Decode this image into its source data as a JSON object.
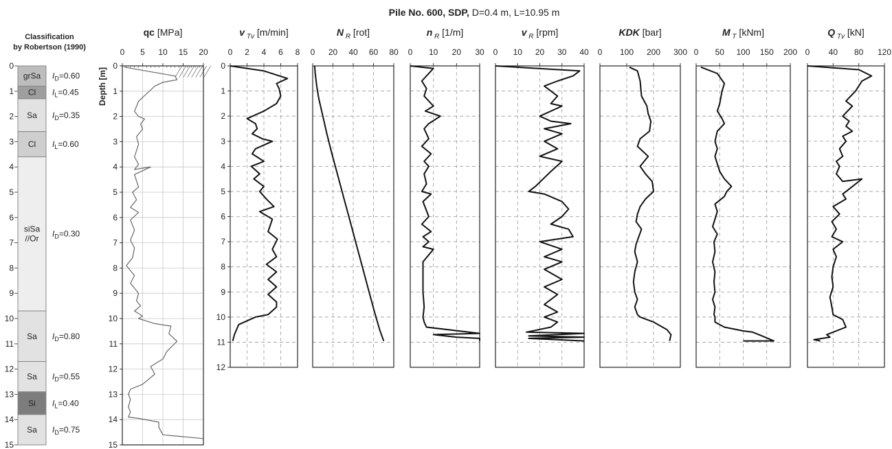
{
  "figure": {
    "title_bold": "Pile No. 600, SDP,",
    "title_rest": " D=0.4 m, L=10.95 m"
  },
  "classification": {
    "header_line1": "Classification",
    "header_line2": "by Robertson (1990)",
    "depth_ticks": [
      "0",
      "1",
      "2",
      "3",
      "4",
      "5",
      "6",
      "7",
      "8",
      "9",
      "10",
      "11",
      "12",
      "13",
      "14",
      "15"
    ],
    "layers": [
      {
        "top": 0,
        "bottom": 0.8,
        "soil": "grSa",
        "index": "I_D=0.60",
        "shade": "#bdbdbd"
      },
      {
        "top": 0.8,
        "bottom": 1.3,
        "soil": "Cl",
        "index": "I_L=0.45",
        "shade": "#9e9e9e"
      },
      {
        "top": 1.3,
        "bottom": 2.6,
        "soil": "Sa",
        "index": "I_D=0.35",
        "shade": "#e2e2e2"
      },
      {
        "top": 2.6,
        "bottom": 3.6,
        "soil": "Cl",
        "index": "I_L=0.60",
        "shade": "#cfcfcf"
      },
      {
        "top": 3.6,
        "bottom": 9.7,
        "soil": "siSa\n//Or",
        "index": "I_D=0.30",
        "shade": "#eeeeee"
      },
      {
        "top": 9.7,
        "bottom": 11.7,
        "soil": "Sa",
        "index": "I_D=0.80",
        "shade": "#e2e2e2"
      },
      {
        "top": 11.7,
        "bottom": 12.9,
        "soil": "Sa",
        "index": "I_D=0.55",
        "shade": "#e2e2e2"
      },
      {
        "top": 12.9,
        "bottom": 13.8,
        "soil": "Si",
        "index": "I_L=0.40",
        "shade": "#7d7d7d"
      },
      {
        "top": 13.8,
        "bottom": 15,
        "soil": "Sa",
        "index": "I_D=0.75",
        "shade": "#e2e2e2"
      }
    ]
  },
  "chart_data": [
    {
      "id": "qc",
      "type": "line",
      "title_main": "qc",
      "title_unit": " [MPa]",
      "ylabel": "Depth [m]",
      "xlim": [
        0,
        20
      ],
      "ylim": [
        0,
        15
      ],
      "xticks": [
        "0",
        "5",
        "10",
        "15",
        "20"
      ],
      "yticks": [
        "0",
        "1",
        "2",
        "3",
        "4",
        "5",
        "6",
        "7",
        "8",
        "9",
        "10",
        "11",
        "12",
        "13",
        "14",
        "15"
      ],
      "series": [
        {
          "x": [
            0.5,
            13,
            13.5,
            10,
            8,
            6,
            4,
            3,
            4,
            5.5,
            4.5,
            5,
            3.5,
            4,
            3,
            4,
            3,
            7,
            3,
            4,
            2.5,
            3.5,
            2,
            4,
            2,
            3,
            2,
            3,
            2.5,
            1,
            3,
            2,
            3,
            4,
            3.5,
            4.5,
            3,
            5,
            4,
            6,
            8,
            12,
            11.5,
            13.5,
            11,
            10,
            7,
            8,
            5,
            2,
            1.5,
            2,
            1.5,
            2,
            1.5,
            4,
            9,
            9,
            10,
            20
          ],
          "y": [
            0.05,
            0.4,
            0.55,
            0.65,
            0.8,
            1.1,
            1.4,
            1.8,
            2.0,
            2.1,
            2.3,
            2.5,
            2.8,
            3.1,
            3.6,
            3.9,
            4.1,
            4.0,
            4.3,
            4.8,
            5.0,
            5.3,
            5.6,
            5.8,
            6.1,
            6.5,
            6.9,
            7.2,
            7.6,
            7.9,
            8.3,
            8.6,
            8.8,
            9.0,
            9.3,
            9.5,
            9.7,
            9.9,
            10.0,
            10.1,
            10.2,
            10.3,
            10.6,
            10.9,
            11.3,
            11.6,
            11.9,
            12.2,
            12.6,
            12.8,
            13.0,
            13.2,
            13.5,
            13.7,
            13.9,
            13.95,
            14.1,
            14.3,
            14.6,
            14.75
          ]
        }
      ]
    },
    {
      "id": "vTv",
      "type": "line",
      "title_main": "v",
      "title_sub": "Tv",
      "title_unit": " [m/min]",
      "xlim": [
        0,
        8
      ],
      "ylim": [
        0,
        12
      ],
      "xticks": [
        "0",
        "2",
        "4",
        "6",
        "8"
      ],
      "yticks": [
        "0",
        "1",
        "2",
        "3",
        "4",
        "5",
        "6",
        "7",
        "8",
        "9",
        "10",
        "11",
        "12"
      ],
      "series": [
        {
          "x": [
            0,
            4,
            6.8,
            5.5,
            5.8,
            6,
            5.5,
            4,
            2,
            3,
            3.2,
            2.6,
            3.8,
            5,
            3,
            2.6,
            4,
            2.5,
            3.5,
            2.8,
            4,
            3.5,
            4.3,
            5.2,
            3.5,
            5,
            4.5,
            5.6,
            5,
            5.5,
            4.3,
            5.5,
            4.5,
            5.5,
            4.5,
            5.5,
            5.5,
            4.5,
            3,
            1,
            0.5,
            0.3
          ],
          "y": [
            0,
            0.2,
            0.5,
            0.7,
            0.9,
            1.2,
            1.5,
            1.8,
            2.1,
            2.3,
            2.5,
            2.7,
            2.9,
            3.0,
            3.3,
            3.5,
            3.8,
            4.0,
            4.3,
            4.5,
            4.8,
            5.0,
            5.3,
            5.6,
            5.8,
            6.1,
            6.6,
            6.9,
            7.3,
            7.6,
            7.9,
            8.2,
            8.5,
            8.8,
            9.1,
            9.4,
            9.6,
            9.9,
            10.0,
            10.3,
            10.7,
            10.95
          ]
        }
      ]
    },
    {
      "id": "NR",
      "type": "line",
      "title_main": "N",
      "title_sub": "R",
      "title_unit": " [rot]",
      "xlim": [
        0,
        80
      ],
      "ylim": [
        0,
        12
      ],
      "xticks": [
        "0",
        "20",
        "40",
        "60",
        "80"
      ],
      "yticks": [],
      "series": [
        {
          "x": [
            2,
            2.5,
            4,
            6,
            10,
            14,
            19,
            25,
            31,
            37,
            43,
            49,
            55,
            61,
            66,
            70
          ],
          "y": [
            0,
            0.3,
            0.8,
            1.3,
            2,
            2.7,
            3.5,
            4.4,
            5.3,
            6.2,
            7.1,
            8,
            8.9,
            9.8,
            10.5,
            10.95
          ]
        }
      ]
    },
    {
      "id": "nR",
      "type": "line",
      "title_main": "n",
      "title_sub": "R",
      "title_unit": " [1/m]",
      "xlim": [
        0,
        30
      ],
      "ylim": [
        0,
        12
      ],
      "xticks": [
        "0",
        "10",
        "20",
        "30"
      ],
      "yticks": [],
      "series": [
        {
          "x": [
            0,
            10,
            8,
            5,
            7,
            6,
            10,
            6.5,
            13,
            8,
            6,
            8,
            5,
            9,
            6,
            8,
            6,
            7,
            5,
            9,
            5.5,
            8,
            5,
            9,
            5.5,
            8,
            5.5,
            10,
            5.5,
            5.5,
            5.5,
            6,
            5.5,
            6,
            7,
            30,
            10,
            20,
            30,
            30
          ],
          "y": [
            0,
            0.1,
            0.3,
            0.6,
            0.9,
            1.2,
            1.6,
            1.8,
            2.0,
            2.3,
            2.5,
            2.9,
            3.2,
            3.5,
            3.8,
            4.0,
            4.3,
            4.7,
            5.0,
            5.1,
            5.4,
            6.0,
            6.3,
            6.6,
            6.8,
            7.0,
            7.2,
            7.3,
            7.8,
            8.3,
            9.0,
            9.6,
            10.0,
            10.2,
            10.4,
            10.65,
            10.7,
            10.8,
            10.85,
            10.95
          ]
        }
      ]
    },
    {
      "id": "vR",
      "type": "line",
      "title_main": "v",
      "title_sub": "R",
      "title_unit": " [rpm]",
      "xlim": [
        0,
        40
      ],
      "ylim": [
        0,
        12
      ],
      "xticks": [
        "0",
        "10",
        "20",
        "30",
        "40"
      ],
      "yticks": [],
      "series": [
        {
          "x": [
            0,
            38,
            35,
            28,
            22,
            28,
            25,
            30,
            20,
            25,
            34,
            22,
            30,
            22,
            28,
            20,
            30,
            25,
            18,
            15,
            22,
            30,
            33,
            30,
            25,
            33,
            35,
            20,
            30,
            22,
            30,
            22,
            30,
            22,
            28,
            22,
            28,
            22,
            28,
            25,
            14,
            40,
            15,
            40,
            15,
            40
          ],
          "y": [
            0,
            0.2,
            0.4,
            0.6,
            0.8,
            1.2,
            1.5,
            1.6,
            2.0,
            2.2,
            2.3,
            2.5,
            2.7,
            3.0,
            3.3,
            3.6,
            3.8,
            4.2,
            4.8,
            5.0,
            5.1,
            5.4,
            5.7,
            6.0,
            6.3,
            6.5,
            6.8,
            7.0,
            7.3,
            7.6,
            7.8,
            8.1,
            8.5,
            8.8,
            9.1,
            9.5,
            9.8,
            10.0,
            10.2,
            10.4,
            10.6,
            10.65,
            10.75,
            10.8,
            10.85,
            10.95
          ]
        }
      ]
    },
    {
      "id": "KDK",
      "type": "line",
      "title_main": "KDK",
      "title_unit": " [bar]",
      "xlim": [
        0,
        300
      ],
      "ylim": [
        0,
        12
      ],
      "xticks": [
        "0",
        "100",
        "200",
        "300"
      ],
      "yticks": [],
      "series": [
        {
          "x": [
            110,
            140,
            150,
            155,
            175,
            180,
            190,
            185,
            150,
            140,
            180,
            165,
            150,
            170,
            195,
            200,
            170,
            150,
            140,
            135,
            155,
            145,
            135,
            130,
            140,
            130,
            125,
            130,
            140,
            130,
            140,
            150,
            200,
            250,
            265,
            260
          ],
          "y": [
            0.05,
            0.2,
            0.6,
            1.2,
            1.6,
            1.9,
            2.2,
            2.6,
            2.9,
            3.2,
            3.6,
            3.8,
            4.0,
            4.3,
            4.6,
            5.0,
            5.3,
            5.6,
            5.9,
            6.2,
            6.5,
            6.8,
            7.1,
            7.4,
            7.8,
            8.2,
            8.6,
            9.0,
            9.3,
            9.6,
            9.9,
            10.0,
            10.2,
            10.5,
            10.7,
            10.95
          ]
        }
      ]
    },
    {
      "id": "MT",
      "type": "line",
      "title_main": "M",
      "title_sub": "T",
      "title_unit": " [kNm]",
      "xlim": [
        0,
        200
      ],
      "ylim": [
        0,
        12
      ],
      "xticks": [
        "0",
        "50",
        "100",
        "150",
        "200"
      ],
      "yticks": [],
      "series": [
        {
          "x": [
            10,
            45,
            60,
            55,
            50,
            45,
            55,
            60,
            45,
            40,
            45,
            40,
            45,
            50,
            60,
            75,
            65,
            60,
            40,
            45,
            40,
            35,
            45,
            38,
            40,
            35,
            40,
            38,
            40,
            35,
            40,
            38,
            40,
            40,
            60,
            100,
            120,
            140,
            165,
            100
          ],
          "y": [
            0.05,
            0.3,
            0.7,
            1.0,
            1.5,
            1.8,
            2.1,
            2.3,
            2.6,
            3.0,
            3.3,
            3.6,
            3.9,
            4.2,
            4.5,
            4.8,
            5.0,
            5.2,
            5.5,
            5.8,
            6.1,
            6.4,
            6.7,
            7.0,
            7.4,
            7.8,
            8.2,
            8.6,
            9.0,
            9.3,
            9.6,
            9.9,
            10.0,
            10.2,
            10.4,
            10.55,
            10.6,
            10.75,
            10.95,
            10.95
          ]
        }
      ]
    },
    {
      "id": "QTv",
      "type": "line",
      "title_main": "Q",
      "title_sub": "Tv",
      "title_unit": " [kN]",
      "xlim": [
        0,
        120
      ],
      "ylim": [
        0,
        12
      ],
      "xticks": [
        "0",
        "40",
        "80",
        "120"
      ],
      "yticks": [],
      "series": [
        {
          "x": [
            0,
            80,
            100,
            85,
            75,
            60,
            70,
            55,
            65,
            60,
            70,
            55,
            60,
            50,
            55,
            45,
            50,
            45,
            55,
            85,
            65,
            55,
            60,
            40,
            50,
            38,
            45,
            38,
            55,
            40,
            45,
            40,
            38,
            40,
            35,
            38,
            40,
            55,
            60,
            40,
            30,
            35,
            10,
            20
          ],
          "y": [
            0,
            0.15,
            0.4,
            0.6,
            1.0,
            1.4,
            1.6,
            2.0,
            2.2,
            2.4,
            2.6,
            2.8,
            3.0,
            3.3,
            3.6,
            3.8,
            4.0,
            4.3,
            4.6,
            4.5,
            4.9,
            5.1,
            5.3,
            5.6,
            5.9,
            6.2,
            6.5,
            6.8,
            7.0,
            7.3,
            7.6,
            8.0,
            8.4,
            8.8,
            9.2,
            9.6,
            9.9,
            10.1,
            10.4,
            10.6,
            10.7,
            10.8,
            10.9,
            10.95
          ]
        }
      ]
    }
  ]
}
